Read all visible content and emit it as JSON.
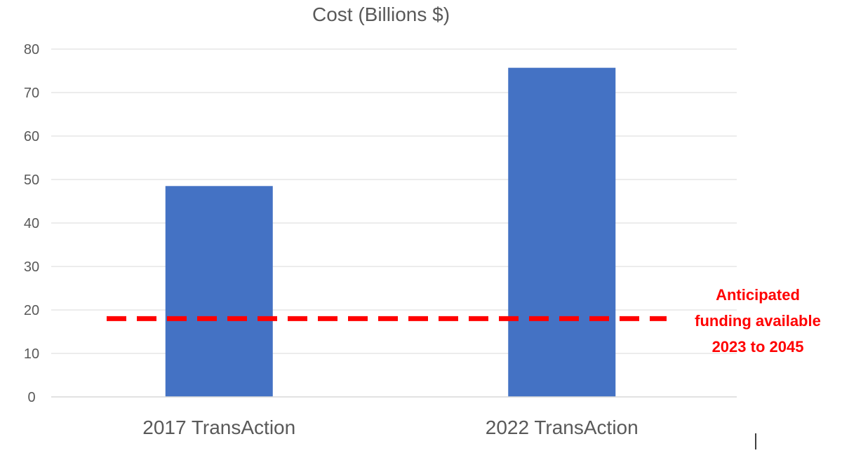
{
  "chart_data": {
    "type": "bar",
    "title": "Cost (Billions $)",
    "xlabel": "",
    "ylabel": "",
    "categories": [
      "2017 TransAction",
      "2022 TransAction"
    ],
    "values": [
      48.5,
      75.7
    ],
    "ylim": [
      0,
      80
    ],
    "yticks": [
      0,
      10,
      20,
      30,
      40,
      50,
      60,
      70,
      80
    ],
    "grid": true,
    "legend": "none",
    "bar_color": "#4472C4",
    "reference_line": {
      "value": 18,
      "color": "#FF0000",
      "style": "dashed",
      "label_lines": [
        "Anticipated",
        "funding available",
        "2023 to 2045"
      ]
    }
  }
}
